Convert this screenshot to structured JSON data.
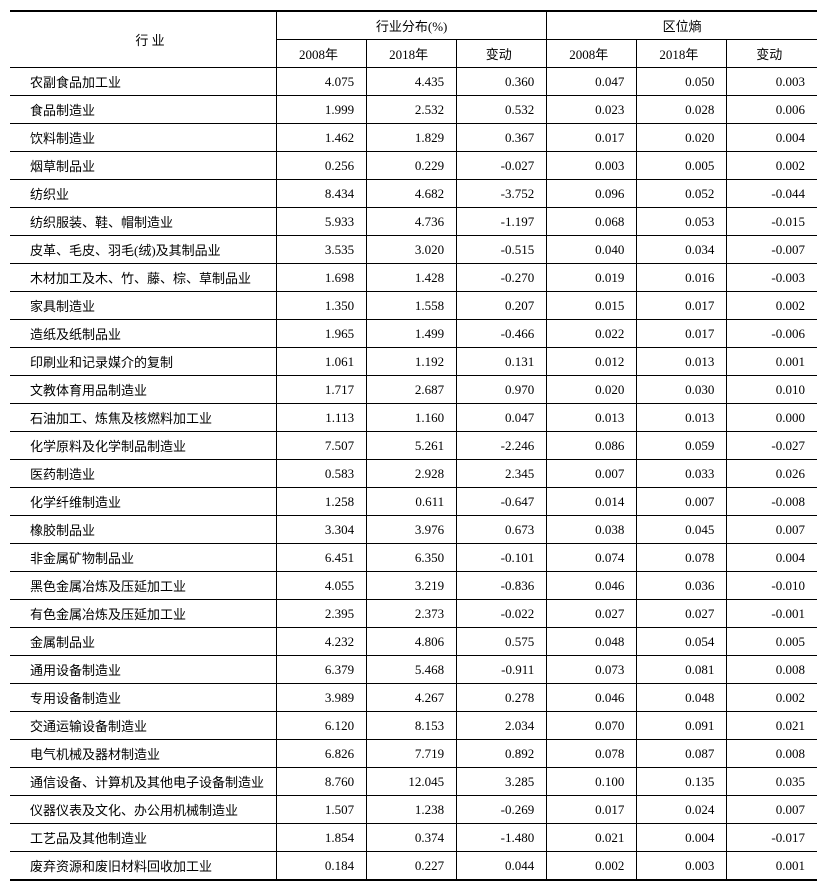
{
  "header": {
    "industry": "行  业",
    "group1": "行业分布(%)",
    "group2": "区位熵",
    "y2008": "2008年",
    "y2018": "2018年",
    "change": "变动"
  },
  "rows": [
    {
      "name": "农副食品加工业",
      "a": "4.075",
      "b": "4.435",
      "c": "0.360",
      "d": "0.047",
      "e": "0.050",
      "f": "0.003"
    },
    {
      "name": "食品制造业",
      "a": "1.999",
      "b": "2.532",
      "c": "0.532",
      "d": "0.023",
      "e": "0.028",
      "f": "0.006"
    },
    {
      "name": "饮料制造业",
      "a": "1.462",
      "b": "1.829",
      "c": "0.367",
      "d": "0.017",
      "e": "0.020",
      "f": "0.004"
    },
    {
      "name": "烟草制品业",
      "a": "0.256",
      "b": "0.229",
      "c": "-0.027",
      "d": "0.003",
      "e": "0.005",
      "f": "0.002"
    },
    {
      "name": "纺织业",
      "a": "8.434",
      "b": "4.682",
      "c": "-3.752",
      "d": "0.096",
      "e": "0.052",
      "f": "-0.044"
    },
    {
      "name": "纺织服装、鞋、帽制造业",
      "a": "5.933",
      "b": "4.736",
      "c": "-1.197",
      "d": "0.068",
      "e": "0.053",
      "f": "-0.015"
    },
    {
      "name": "皮革、毛皮、羽毛(绒)及其制品业",
      "a": "3.535",
      "b": "3.020",
      "c": "-0.515",
      "d": "0.040",
      "e": "0.034",
      "f": "-0.007"
    },
    {
      "name": "木材加工及木、竹、藤、棕、草制品业",
      "a": "1.698",
      "b": "1.428",
      "c": "-0.270",
      "d": "0.019",
      "e": "0.016",
      "f": "-0.003"
    },
    {
      "name": "家具制造业",
      "a": "1.350",
      "b": "1.558",
      "c": "0.207",
      "d": "0.015",
      "e": "0.017",
      "f": "0.002"
    },
    {
      "name": "造纸及纸制品业",
      "a": "1.965",
      "b": "1.499",
      "c": "-0.466",
      "d": "0.022",
      "e": "0.017",
      "f": "-0.006"
    },
    {
      "name": "印刷业和记录媒介的复制",
      "a": "1.061",
      "b": "1.192",
      "c": "0.131",
      "d": "0.012",
      "e": "0.013",
      "f": "0.001"
    },
    {
      "name": "文教体育用品制造业",
      "a": "1.717",
      "b": "2.687",
      "c": "0.970",
      "d": "0.020",
      "e": "0.030",
      "f": "0.010"
    },
    {
      "name": "石油加工、炼焦及核燃料加工业",
      "a": "1.113",
      "b": "1.160",
      "c": "0.047",
      "d": "0.013",
      "e": "0.013",
      "f": "0.000"
    },
    {
      "name": "化学原料及化学制品制造业",
      "a": "7.507",
      "b": "5.261",
      "c": "-2.246",
      "d": "0.086",
      "e": "0.059",
      "f": "-0.027"
    },
    {
      "name": "医药制造业",
      "a": "0.583",
      "b": "2.928",
      "c": "2.345",
      "d": "0.007",
      "e": "0.033",
      "f": "0.026"
    },
    {
      "name": "化学纤维制造业",
      "a": "1.258",
      "b": "0.611",
      "c": "-0.647",
      "d": "0.014",
      "e": "0.007",
      "f": "-0.008"
    },
    {
      "name": "橡胶制品业",
      "a": "3.304",
      "b": "3.976",
      "c": "0.673",
      "d": "0.038",
      "e": "0.045",
      "f": "0.007"
    },
    {
      "name": "非金属矿物制品业",
      "a": "6.451",
      "b": "6.350",
      "c": "-0.101",
      "d": "0.074",
      "e": "0.078",
      "f": "0.004"
    },
    {
      "name": "黑色金属冶炼及压延加工业",
      "a": "4.055",
      "b": "3.219",
      "c": "-0.836",
      "d": "0.046",
      "e": "0.036",
      "f": "-0.010"
    },
    {
      "name": "有色金属冶炼及压延加工业",
      "a": "2.395",
      "b": "2.373",
      "c": "-0.022",
      "d": "0.027",
      "e": "0.027",
      "f": "-0.001"
    },
    {
      "name": "金属制品业",
      "a": "4.232",
      "b": "4.806",
      "c": "0.575",
      "d": "0.048",
      "e": "0.054",
      "f": "0.005"
    },
    {
      "name": "通用设备制造业",
      "a": "6.379",
      "b": "5.468",
      "c": "-0.911",
      "d": "0.073",
      "e": "0.081",
      "f": "0.008"
    },
    {
      "name": "专用设备制造业",
      "a": "3.989",
      "b": "4.267",
      "c": "0.278",
      "d": "0.046",
      "e": "0.048",
      "f": "0.002"
    },
    {
      "name": "交通运输设备制造业",
      "a": "6.120",
      "b": "8.153",
      "c": "2.034",
      "d": "0.070",
      "e": "0.091",
      "f": "0.021"
    },
    {
      "name": "电气机械及器材制造业",
      "a": "6.826",
      "b": "7.719",
      "c": "0.892",
      "d": "0.078",
      "e": "0.087",
      "f": "0.008"
    },
    {
      "name": "通信设备、计算机及其他电子设备制造业",
      "a": "8.760",
      "b": "12.045",
      "c": "3.285",
      "d": "0.100",
      "e": "0.135",
      "f": "0.035"
    },
    {
      "name": "仪器仪表及文化、办公用机械制造业",
      "a": "1.507",
      "b": "1.238",
      "c": "-0.269",
      "d": "0.017",
      "e": "0.024",
      "f": "0.007"
    },
    {
      "name": "工艺品及其他制造业",
      "a": "1.854",
      "b": "0.374",
      "c": "-1.480",
      "d": "0.021",
      "e": "0.004",
      "f": "-0.017"
    },
    {
      "name": "废弃资源和废旧材料回收加工业",
      "a": "0.184",
      "b": "0.227",
      "c": "0.044",
      "d": "0.002",
      "e": "0.003",
      "f": "0.001"
    }
  ],
  "style": {
    "font_size": 13,
    "background": "#ffffff",
    "border_color": "#000000"
  }
}
